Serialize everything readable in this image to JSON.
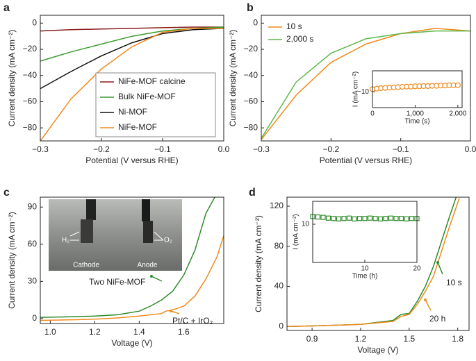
{
  "chart_data": [
    {
      "type": "line",
      "label": "a",
      "xlabel": "Potential (V versus RHE)",
      "ylabel": "Current density (mA cm⁻²)",
      "x": [
        -0.3,
        -0.25,
        -0.2,
        -0.15,
        -0.1,
        -0.05,
        0
      ],
      "xlim": [
        -0.3,
        0
      ],
      "ylim": [
        -90,
        6
      ],
      "xticks": [
        {
          "value": -0.3,
          "label": "−0.3"
        },
        {
          "value": -0.2,
          "label": "−0.2"
        },
        {
          "value": -0.1,
          "label": "−0.1"
        },
        {
          "value": 0,
          "label": "0.0"
        }
      ],
      "yticks": [
        {
          "value": -80,
          "label": "−80"
        },
        {
          "value": -60,
          "label": "−60"
        },
        {
          "value": -40,
          "label": "−40"
        },
        {
          "value": -20,
          "label": "−20"
        },
        0
      ],
      "legend": "lower right",
      "series": [
        {
          "name": "NiFe-MOF calcine",
          "color": "#8b1a1a",
          "values": [
            -6,
            -5,
            -4.5,
            -4,
            -3.5,
            -3,
            -3
          ]
        },
        {
          "name": "Bulk NiFe-MOF",
          "color": "#3a9a2e",
          "values": [
            -29,
            -22,
            -16,
            -10,
            -6,
            -4,
            -3
          ]
        },
        {
          "name": "Ni-MOF",
          "color": "#111111",
          "values": [
            -50,
            -37,
            -25,
            -15,
            -8,
            -5,
            -4
          ]
        },
        {
          "name": "NiFe-MOF",
          "color": "#f08a1c",
          "values": [
            -90,
            -58,
            -35,
            -18,
            -7,
            -4,
            -4
          ]
        }
      ]
    },
    {
      "type": "line",
      "label": "b",
      "xlabel": "Potential (V versus RHE)",
      "ylabel": "Current density (mA cm⁻²)",
      "x": [
        -0.3,
        -0.25,
        -0.2,
        -0.15,
        -0.1,
        -0.05,
        0
      ],
      "xlim": [
        -0.3,
        0
      ],
      "ylim": [
        -90,
        6
      ],
      "xticks": [
        {
          "value": -0.3,
          "label": "−0.3"
        },
        {
          "value": -0.2,
          "label": "−0.2"
        },
        {
          "value": -0.1,
          "label": "−0.1"
        },
        {
          "value": 0,
          "label": "0.0"
        }
      ],
      "yticks": [
        {
          "value": -80,
          "label": "−80"
        },
        {
          "value": -60,
          "label": "−60"
        },
        {
          "value": -40,
          "label": "−40"
        },
        {
          "value": -20,
          "label": "−20"
        },
        0
      ],
      "legend": "upper left",
      "series": [
        {
          "name": "10 s",
          "color": "#f08a1c",
          "values": [
            -89,
            -55,
            -30,
            -16,
            -8,
            -4,
            -6
          ]
        },
        {
          "name": "2,000 s",
          "color": "#5cb848",
          "values": [
            -88,
            -45,
            -23,
            -12,
            -8,
            -6,
            -6
          ]
        }
      ]
    },
    {
      "type": "scatter",
      "xlabel": "Time (s)",
      "ylabel": "I (mA cm⁻²)",
      "x": [
        0,
        100,
        200,
        300,
        400,
        500,
        600,
        700,
        800,
        900,
        1000,
        1100,
        1200,
        1300,
        1400,
        1500,
        1600,
        1700,
        1800,
        1900,
        2000
      ],
      "xlim": [
        0,
        2100
      ],
      "ylim": [
        -16,
        -2
      ],
      "xticks": [
        0,
        {
          "value": 1000,
          "label": "1,000"
        },
        {
          "value": 2000,
          "label": "2,000"
        }
      ],
      "yticks": [
        {
          "value": -10,
          "label": "−10"
        }
      ],
      "series": [
        {
          "color": "#f08a1c",
          "marker": "o",
          "values": [
            -9.0,
            -8.8,
            -8.6,
            -8.5,
            -8.4,
            -8.3,
            -8.2,
            -8.1,
            -8.0,
            -8.0,
            -7.9,
            -7.9,
            -7.8,
            -7.8,
            -7.7,
            -7.7,
            -7.6,
            -7.6,
            -7.5,
            -7.5,
            -7.5
          ]
        }
      ]
    },
    {
      "type": "line",
      "label": "c",
      "xlabel": "Voltage (V)",
      "ylabel": "Current density (mA cm⁻²)",
      "xlim": [
        0.955,
        1.78
      ],
      "ylim": [
        -4,
        98
      ],
      "xticks": [
        {
          "value": 1.0,
          "label": "1.0"
        },
        1.2,
        1.4,
        1.6
      ],
      "yticks": [
        0,
        30,
        60,
        90
      ],
      "photo_labels": [
        "H₂",
        "O₂",
        "Cathode",
        "Anode"
      ],
      "series": [
        {
          "name": "Two NiFe-MOF",
          "color": "#2e8b2a",
          "x": [
            0.955,
            1.1,
            1.2,
            1.3,
            1.4,
            1.45,
            1.5,
            1.55,
            1.6,
            1.65,
            1.7,
            1.74
          ],
          "values": [
            1,
            1.5,
            2,
            3,
            6,
            10,
            15,
            22,
            35,
            55,
            85,
            98
          ]
        },
        {
          "name": "Pt/C + IrO₂",
          "color": "#f08a1c",
          "x": [
            0.955,
            1.1,
            1.2,
            1.3,
            1.4,
            1.5,
            1.52,
            1.55,
            1.6,
            1.65,
            1.7,
            1.75,
            1.78
          ],
          "values": [
            -1.5,
            -1,
            -0.5,
            0.5,
            2,
            4,
            6,
            7,
            10,
            18,
            32,
            50,
            67
          ]
        }
      ]
    },
    {
      "type": "line",
      "label": "d",
      "xlabel": "Voltage (V)",
      "ylabel": "Current density (mA cm⁻²)",
      "xlim": [
        0.745,
        1.87
      ],
      "ylim": [
        -4,
        129
      ],
      "xticks": [
        0.9,
        1.2,
        1.5,
        1.8
      ],
      "yticks": [
        0,
        40,
        80,
        120
      ],
      "series": [
        {
          "name": "10 s",
          "color": "#2e8b2a",
          "x": [
            0.75,
            0.9,
            1.2,
            1.4,
            1.45,
            1.5,
            1.55,
            1.6,
            1.65,
            1.7,
            1.75,
            1.79
          ],
          "values": [
            0,
            0.5,
            2,
            6,
            12,
            13,
            25,
            40,
            60,
            85,
            110,
            129
          ]
        },
        {
          "name": "20 h",
          "color": "#f08a1c",
          "x": [
            0.75,
            0.9,
            1.2,
            1.4,
            1.45,
            1.5,
            1.55,
            1.6,
            1.65,
            1.7,
            1.75,
            1.81
          ],
          "values": [
            0,
            0.5,
            2,
            5,
            10,
            12,
            22,
            35,
            50,
            75,
            100,
            128
          ]
        }
      ]
    },
    {
      "type": "scatter",
      "xlabel": "Time (h)",
      "ylabel": "I (mA cm⁻²)",
      "x": [
        0,
        1,
        2,
        3,
        4,
        5,
        6,
        7,
        8,
        9,
        10,
        11,
        12,
        13,
        14,
        15,
        16,
        17,
        18,
        19,
        20
      ],
      "xlim": [
        0,
        20
      ],
      "ylim": [
        0,
        16
      ],
      "xticks": [
        10,
        20
      ],
      "yticks": [
        10
      ],
      "series": [
        {
          "color": "#2e8b2a",
          "marker": "s",
          "values": [
            12,
            11.9,
            11.8,
            11.6,
            11.5,
            11.4,
            11.5,
            11.6,
            11.4,
            11.5,
            11.5,
            11.6,
            11.5,
            11.4,
            11.5,
            11.6,
            11.5,
            11.5,
            11.4,
            11.5,
            11.5
          ]
        }
      ]
    }
  ]
}
